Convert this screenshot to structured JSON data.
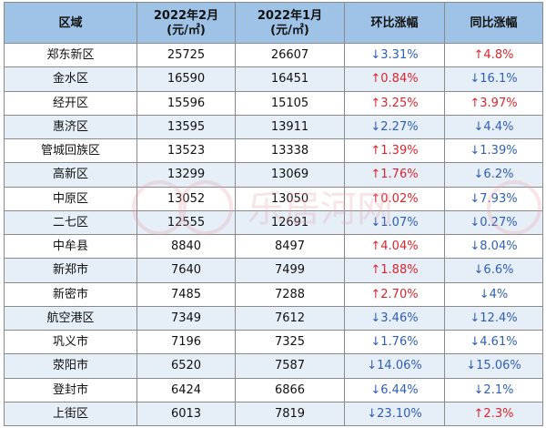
{
  "table": {
    "headers": [
      {
        "line1": "区域",
        "line2": ""
      },
      {
        "line1": "2022年2月",
        "line2": "(元/㎡)"
      },
      {
        "line1": "2022年1月",
        "line2": "(元/㎡)"
      },
      {
        "line1": "环比涨幅",
        "line2": ""
      },
      {
        "line1": "同比涨幅",
        "line2": ""
      }
    ],
    "rows": [
      {
        "region": "郑东新区",
        "feb": "25725",
        "jan": "26607",
        "mom": "↓3.31%",
        "mom_dir": "down",
        "yoy": "↑4.8%",
        "yoy_dir": "up"
      },
      {
        "region": "金水区",
        "feb": "16590",
        "jan": "16451",
        "mom": "↑0.84%",
        "mom_dir": "up",
        "yoy": "↓16.1%",
        "yoy_dir": "down"
      },
      {
        "region": "经开区",
        "feb": "15596",
        "jan": "15105",
        "mom": "↑3.25%",
        "mom_dir": "up",
        "yoy": "↑3.97%",
        "yoy_dir": "up"
      },
      {
        "region": "惠济区",
        "feb": "13595",
        "jan": "13911",
        "mom": "↓2.27%",
        "mom_dir": "down",
        "yoy": "↓4.4%",
        "yoy_dir": "down"
      },
      {
        "region": "管城回族区",
        "feb": "13523",
        "jan": "13338",
        "mom": "↑1.39%",
        "mom_dir": "up",
        "yoy": "↓1.39%",
        "yoy_dir": "down"
      },
      {
        "region": "高新区",
        "feb": "13299",
        "jan": "13069",
        "mom": "↑1.76%",
        "mom_dir": "up",
        "yoy": "↓6.2%",
        "yoy_dir": "down"
      },
      {
        "region": "中原区",
        "feb": "13052",
        "jan": "13050",
        "mom": "↑0.02%",
        "mom_dir": "up",
        "yoy": "↓7.93%",
        "yoy_dir": "down"
      },
      {
        "region": "二七区",
        "feb": "12555",
        "jan": "12691",
        "mom": "↓1.07%",
        "mom_dir": "down",
        "yoy": "↓0.27%",
        "yoy_dir": "down"
      },
      {
        "region": "中牟县",
        "feb": "8840",
        "jan": "8497",
        "mom": "↑4.04%",
        "mom_dir": "up",
        "yoy": "↓8.04%",
        "yoy_dir": "down"
      },
      {
        "region": "新郑市",
        "feb": "7640",
        "jan": "7499",
        "mom": "↑1.88%",
        "mom_dir": "up",
        "yoy": "↓6.6%",
        "yoy_dir": "down"
      },
      {
        "region": "新密市",
        "feb": "7485",
        "jan": "7288",
        "mom": "↑2.70%",
        "mom_dir": "up",
        "yoy": "↓4%",
        "yoy_dir": "down"
      },
      {
        "region": "航空港区",
        "feb": "7349",
        "jan": "7612",
        "mom": "↓3.46%",
        "mom_dir": "down",
        "yoy": "↓12.4%",
        "yoy_dir": "down"
      },
      {
        "region": "巩义市",
        "feb": "7196",
        "jan": "7325",
        "mom": "↓1.76%",
        "mom_dir": "down",
        "yoy": "↓4.61%",
        "yoy_dir": "down"
      },
      {
        "region": "荥阳市",
        "feb": "6520",
        "jan": "7587",
        "mom": "↓14.06%",
        "mom_dir": "down",
        "yoy": "↓15.06%",
        "yoy_dir": "down"
      },
      {
        "region": "登封市",
        "feb": "6424",
        "jan": "6866",
        "mom": "↓6.44%",
        "mom_dir": "down",
        "yoy": "↓2.1%",
        "yoy_dir": "down"
      },
      {
        "region": "上街区",
        "feb": "6013",
        "jan": "7819",
        "mom": "↓23.10%",
        "mom_dir": "down",
        "yoy": "↑2.3%",
        "yoy_dir": "up"
      }
    ]
  },
  "watermark": {
    "text": "乐居河网",
    "color": "#e8a0a8"
  },
  "colors": {
    "header_bg": "#9ec3e6",
    "stripe_bg": "#e6eef8",
    "up": "#d9262c",
    "down": "#2f5fb3",
    "border": "#8a8a8a"
  }
}
